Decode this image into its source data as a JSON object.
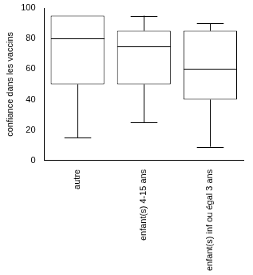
{
  "chart_data": {
    "type": "boxplot",
    "ylabel": "confiance dans les vaccins",
    "categories": [
      "autre",
      "enfant(s) 4-15 ans",
      "enfant(s) inf ou égal 3 ans"
    ],
    "boxes": [
      {
        "min": 15,
        "q1": 50,
        "median": 80,
        "q3": 95,
        "max": 95
      },
      {
        "min": 25,
        "q1": 50,
        "median": 75,
        "q3": 85,
        "max": 95
      },
      {
        "min": 9,
        "q1": 40,
        "median": 60,
        "q3": 85,
        "max": 90
      }
    ],
    "color": "#000000",
    "ylim": [
      0,
      100
    ],
    "yticks": [
      0,
      20,
      40,
      60,
      80,
      100
    ],
    "grid": false
  }
}
